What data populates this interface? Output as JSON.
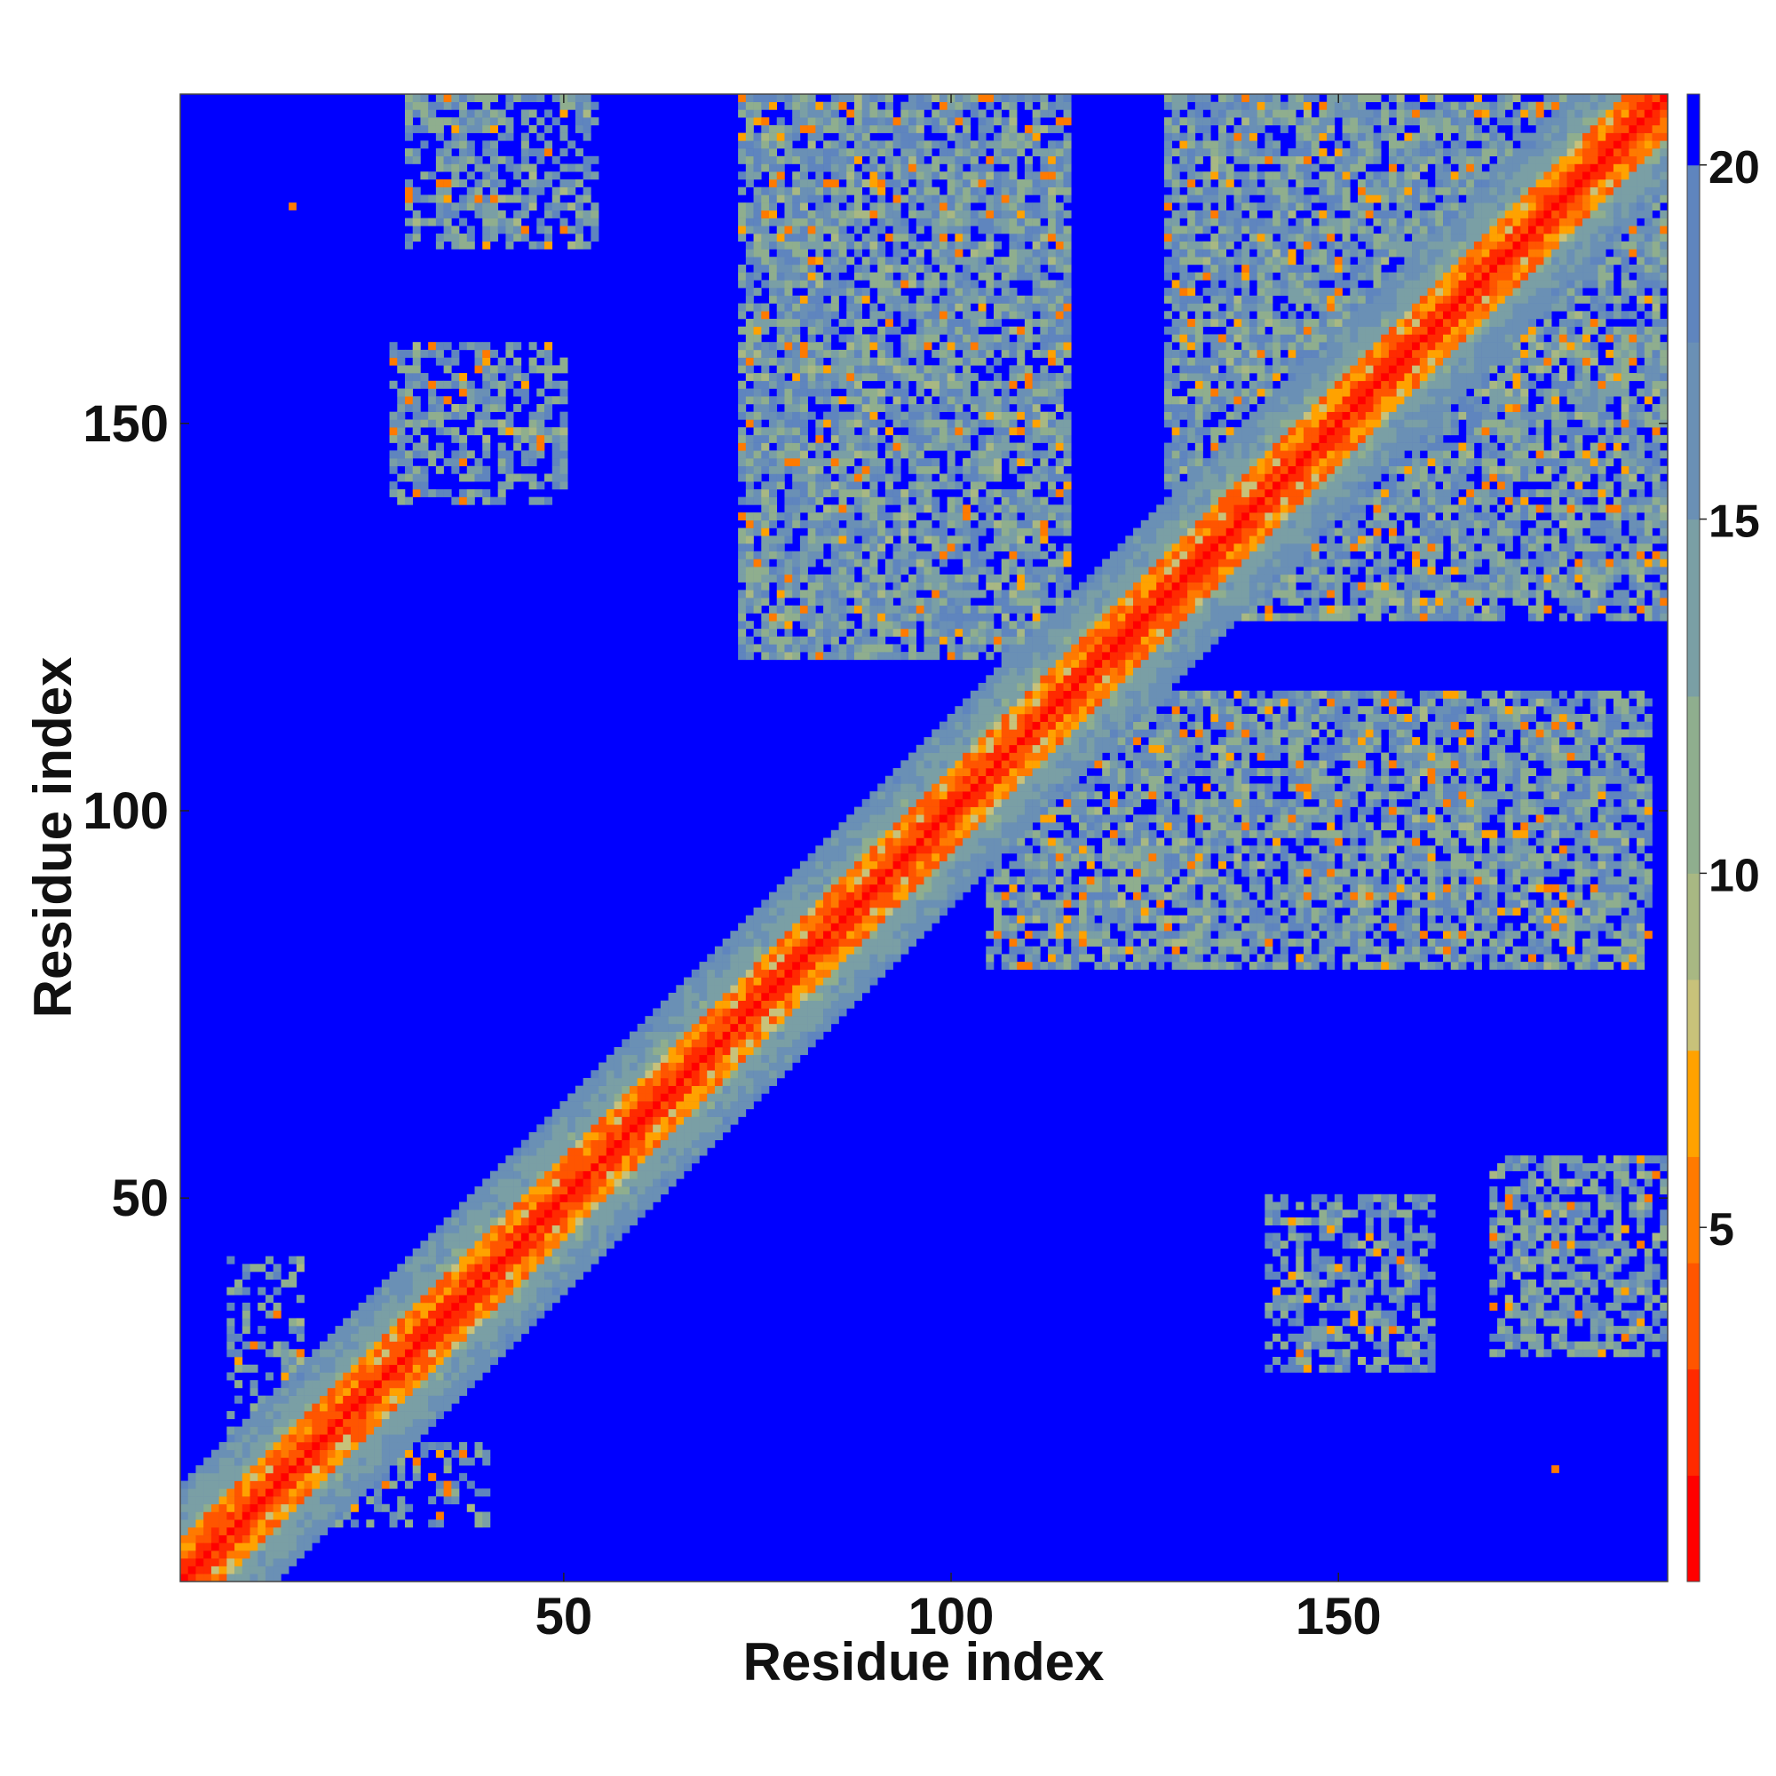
{
  "chart_data": {
    "type": "heatmap",
    "title": "",
    "xlabel": "Residue index",
    "ylabel": "Residue index",
    "n_residues": 192,
    "xlim": [
      1,
      192
    ],
    "ylim": [
      1,
      192
    ],
    "x_ticks": [
      50,
      100,
      150
    ],
    "y_ticks": [
      50,
      100,
      150
    ],
    "x_tick_labels": [
      "50",
      "100",
      "150"
    ],
    "y_tick_labels": [
      "50",
      "100",
      "150"
    ],
    "colorbar": {
      "range": [
        0,
        21
      ],
      "ticks": [
        5,
        10,
        15,
        20
      ],
      "tick_labels": [
        "5",
        "10",
        "15",
        "20"
      ],
      "bands": [
        {
          "max": 1.5,
          "color": "#ff0000"
        },
        {
          "max": 3.0,
          "color": "#ff2a00"
        },
        {
          "max": 4.5,
          "color": "#ff5500"
        },
        {
          "max": 6.0,
          "color": "#ff7a00"
        },
        {
          "max": 7.5,
          "color": "#ffa200"
        },
        {
          "max": 8.5,
          "color": "#c8c27a"
        },
        {
          "max": 10.0,
          "color": "#a8b883"
        },
        {
          "max": 12.5,
          "color": "#8fae8e"
        },
        {
          "max": 15.0,
          "color": "#7a9fa5"
        },
        {
          "max": 17.5,
          "color": "#6a90b5"
        },
        {
          "max": 20.0,
          "color": "#5f85be"
        },
        {
          "max": 21.0,
          "color": "#0000ff"
        }
      ],
      "background_color": "#0000ff"
    },
    "contact_regions": [
      {
        "x_range": [
          30,
          54
        ],
        "y_range": [
          173,
          192
        ],
        "level": "medium"
      },
      {
        "x_range": [
          28,
          50
        ],
        "y_range": [
          140,
          160
        ],
        "level": "medium"
      },
      {
        "x_range": [
          73,
          115
        ],
        "y_range": [
          120,
          192
        ],
        "level": "high"
      },
      {
        "x_range": [
          105,
          190
        ],
        "y_range": [
          80,
          115
        ],
        "level": "high"
      },
      {
        "x_range": [
          128,
          192
        ],
        "y_range": [
          125,
          192
        ],
        "level": "high"
      },
      {
        "x_range": [
          141,
          162
        ],
        "y_range": [
          28,
          50
        ],
        "level": "medium"
      },
      {
        "x_range": [
          170,
          192
        ],
        "y_range": [
          30,
          55
        ],
        "level": "medium"
      },
      {
        "x_range": [
          7,
          16
        ],
        "y_range": [
          20,
          42
        ],
        "level": "low"
      },
      {
        "x_range": [
          20,
          40
        ],
        "y_range": [
          8,
          18
        ],
        "level": "low"
      }
    ],
    "isolated_points": [
      {
        "x": 15,
        "y": 178,
        "value": 6
      },
      {
        "x": 178,
        "y": 15,
        "value": 6
      }
    ]
  }
}
